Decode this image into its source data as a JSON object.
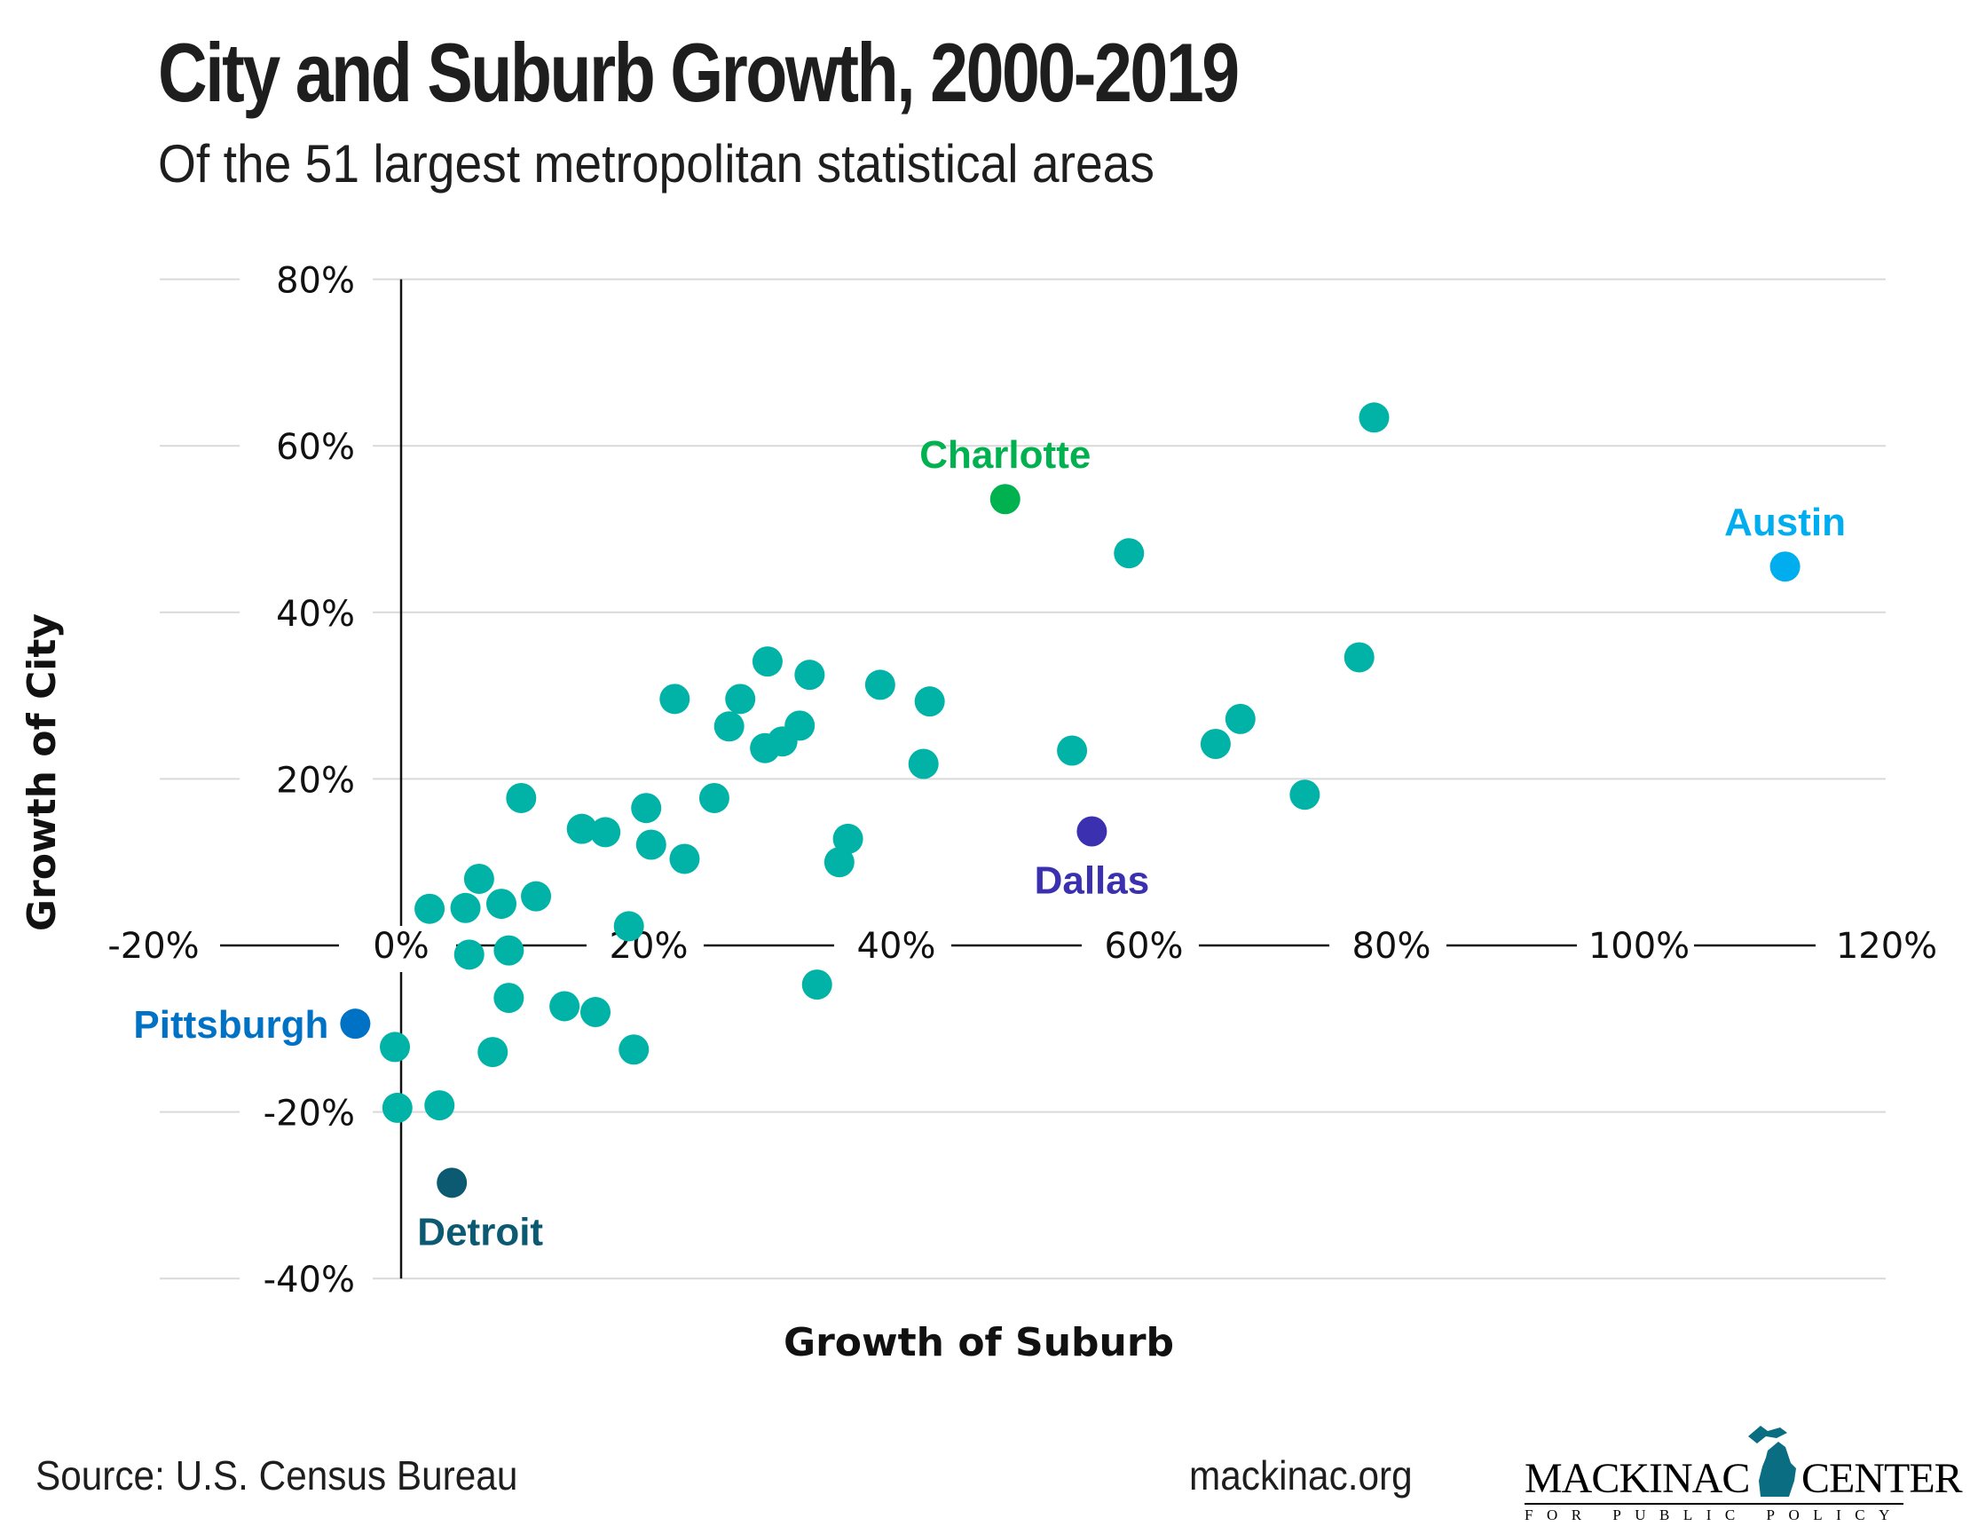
{
  "header": {
    "title": "City and Suburb Growth, 2000-2019",
    "subtitle": "Of the 51 largest metropolitan statistical areas"
  },
  "footer": {
    "source": "Source: U.S. Census Bureau",
    "site": "mackinac.org",
    "logo_main_left": "MACKINAC",
    "logo_main_right": "CENTER",
    "logo_sub": "FOR PUBLIC POLICY",
    "logo_icon": "michigan-map-icon"
  },
  "colors": {
    "default": "#00b3a6",
    "Charlotte": "#00b14f",
    "Austin": "#00aeef",
    "Dallas": "#3b30b0",
    "Pittsburgh": "#0072c6",
    "Detroit": "#0c5a72",
    "logo": "#0b6d82"
  },
  "chart_data": {
    "type": "scatter",
    "title": "City and Suburb Growth, 2000-2019",
    "subtitle": "Of the 51 largest metropolitan statistical areas",
    "xlabel": "Growth of Suburb",
    "ylabel": "Growth of City",
    "xlim": [
      -20,
      120
    ],
    "ylim": [
      -40,
      80
    ],
    "x_ticks": [
      "-20%",
      "0%",
      "20%",
      "40%",
      "60%",
      "80%",
      "100%",
      "120%"
    ],
    "x_tick_values": [
      -20,
      0,
      20,
      40,
      60,
      80,
      100,
      120
    ],
    "y_ticks": [
      "80%",
      "60%",
      "40%",
      "20%",
      "-20%",
      "-40%"
    ],
    "y_tick_values": [
      80,
      60,
      40,
      20,
      -20,
      -40
    ],
    "grid": true,
    "labeled_points": [
      {
        "name": "Charlotte",
        "x": 48.8,
        "y": 53.6,
        "label_pos": "top"
      },
      {
        "name": "Austin",
        "x": 111.8,
        "y": 45.5,
        "label_pos": "top"
      },
      {
        "name": "Dallas",
        "x": 55.8,
        "y": 13.7,
        "label_pos": "bottom"
      },
      {
        "name": "Pittsburgh",
        "x": -3.7,
        "y": -9.4,
        "label_pos": "left"
      },
      {
        "name": "Detroit",
        "x": 4.1,
        "y": -28.5,
        "label_pos": "bottom"
      }
    ],
    "points": [
      [
        78.6,
        63.4
      ],
      [
        58.8,
        47.1
      ],
      [
        77.4,
        34.6
      ],
      [
        67.8,
        27.2
      ],
      [
        65.8,
        24.2
      ],
      [
        73.0,
        18.1
      ],
      [
        54.2,
        23.4
      ],
      [
        42.7,
        29.3
      ],
      [
        42.2,
        21.8
      ],
      [
        38.7,
        31.3
      ],
      [
        33.0,
        32.5
      ],
      [
        29.6,
        34.1
      ],
      [
        27.4,
        29.6
      ],
      [
        26.5,
        26.3
      ],
      [
        32.2,
        26.4
      ],
      [
        30.8,
        24.5
      ],
      [
        29.4,
        23.7
      ],
      [
        22.1,
        29.6
      ],
      [
        25.3,
        17.7
      ],
      [
        19.8,
        16.5
      ],
      [
        20.2,
        12.1
      ],
      [
        22.9,
        10.4
      ],
      [
        36.1,
        12.8
      ],
      [
        35.4,
        10.0
      ],
      [
        9.7,
        17.7
      ],
      [
        14.6,
        14.0
      ],
      [
        16.5,
        13.6
      ],
      [
        6.3,
        8.0
      ],
      [
        2.3,
        4.4
      ],
      [
        5.2,
        4.5
      ],
      [
        8.1,
        5.0
      ],
      [
        10.9,
        5.9
      ],
      [
        18.4,
        2.3
      ],
      [
        5.5,
        -1.1
      ],
      [
        8.7,
        -0.6
      ],
      [
        8.7,
        -6.3
      ],
      [
        13.2,
        -7.3
      ],
      [
        15.7,
        -8.0
      ],
      [
        33.6,
        -4.7
      ],
      [
        -0.5,
        -12.2
      ],
      [
        7.4,
        -12.8
      ],
      [
        18.8,
        -12.5
      ],
      [
        -0.3,
        -19.5
      ],
      [
        3.1,
        -19.2
      ]
    ]
  }
}
